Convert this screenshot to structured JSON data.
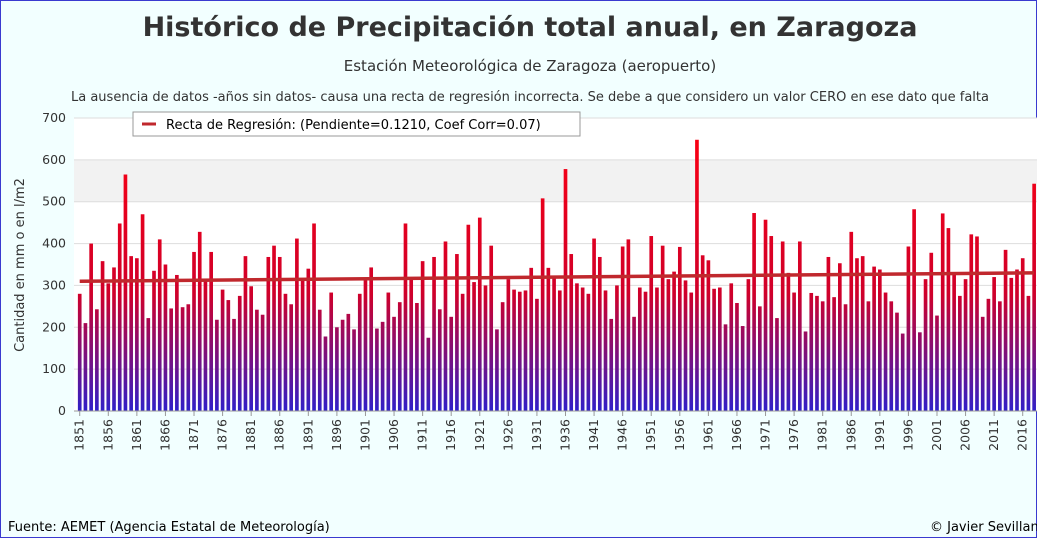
{
  "chart_data": {
    "type": "bar",
    "title": "Histórico de Precipitación total anual, en Zaragoza",
    "subtitle": "Estación Meteorológica de Zaragoza (aeropuerto)",
    "note": "La ausencia de datos -años sin datos- causa una recta de regresión incorrecta. Se debe a que considero un valor CERO en ese dato que falta",
    "y_label": "Cantidad en mm o en l/m2",
    "source": "Fuente: AEMET (Agencia Estatal de Meteorología)",
    "credit": "© Javier Sevillano",
    "x": [
      1851,
      1852,
      1853,
      1854,
      1855,
      1856,
      1857,
      1858,
      1859,
      1860,
      1861,
      1862,
      1863,
      1864,
      1865,
      1866,
      1867,
      1868,
      1869,
      1870,
      1871,
      1872,
      1873,
      1874,
      1875,
      1876,
      1877,
      1878,
      1879,
      1880,
      1881,
      1882,
      1883,
      1884,
      1885,
      1886,
      1887,
      1888,
      1889,
      1890,
      1891,
      1892,
      1893,
      1894,
      1895,
      1896,
      1897,
      1898,
      1899,
      1900,
      1901,
      1902,
      1903,
      1904,
      1905,
      1906,
      1907,
      1908,
      1909,
      1910,
      1911,
      1912,
      1913,
      1914,
      1915,
      1916,
      1917,
      1918,
      1919,
      1920,
      1921,
      1922,
      1923,
      1924,
      1925,
      1926,
      1927,
      1928,
      1929,
      1930,
      1931,
      1932,
      1933,
      1934,
      1935,
      1936,
      1937,
      1938,
      1939,
      1940,
      1941,
      1942,
      1943,
      1944,
      1945,
      1946,
      1947,
      1948,
      1949,
      1950,
      1951,
      1952,
      1953,
      1954,
      1955,
      1956,
      1957,
      1958,
      1959,
      1960,
      1961,
      1962,
      1963,
      1964,
      1965,
      1966,
      1967,
      1968,
      1969,
      1970,
      1971,
      1972,
      1973,
      1974,
      1975,
      1976,
      1977,
      1978,
      1979,
      1980,
      1981,
      1982,
      1983,
      1984,
      1985,
      1986,
      1987,
      1988,
      1989,
      1990,
      1991,
      1992,
      1993,
      1994,
      1995,
      1996,
      1997,
      1998,
      1999,
      2000,
      2001,
      2002,
      2003,
      2004,
      2005,
      2006,
      2007,
      2008,
      2009,
      2010,
      2011,
      2012,
      2013,
      2014,
      2015,
      2016,
      2017,
      2018
    ],
    "series": [
      {
        "name": "Precipitación",
        "color": "#e8001c",
        "values": [
          280,
          210,
          400,
          243,
          358,
          305,
          343,
          448,
          565,
          370,
          365,
          470,
          222,
          335,
          410,
          350,
          245,
          325,
          248,
          255,
          380,
          428,
          315,
          380,
          218,
          290,
          265,
          220,
          275,
          370,
          298,
          242,
          230,
          368,
          395,
          368,
          280,
          255,
          412,
          315,
          340,
          448,
          242,
          178,
          283,
          200,
          218,
          232,
          195,
          280,
          318,
          343,
          197,
          213,
          283,
          225,
          260,
          448,
          320,
          258,
          358,
          175,
          368,
          243,
          405,
          225,
          375,
          280,
          445,
          308,
          462,
          300,
          395,
          195,
          260,
          315,
          290,
          285,
          288,
          342,
          268,
          508,
          342,
          318,
          288,
          578,
          375,
          305,
          295,
          280,
          412,
          368,
          288,
          220,
          300,
          393,
          410,
          225,
          295,
          285,
          418,
          295,
          395,
          315,
          333,
          392,
          312,
          283,
          648,
          372,
          360,
          292,
          295,
          207,
          305,
          258,
          203,
          315,
          473,
          250,
          457,
          418,
          222,
          405,
          330,
          283,
          405,
          190,
          282,
          275,
          262,
          368,
          272,
          353,
          255,
          428,
          365,
          370,
          262,
          345,
          338,
          283,
          262,
          235,
          185,
          393,
          482,
          188,
          315,
          378,
          228,
          472,
          437,
          330,
          275,
          315,
          422,
          417,
          225,
          268,
          320,
          262,
          385,
          318,
          338,
          365,
          275,
          543
        ]
      },
      {
        "name": "Recta de Regresión: (Pendiente=0.1210, Coef Corr=0.07)",
        "type": "line",
        "color": "#c0282d",
        "x": [
          1851,
          2018
        ],
        "values": [
          310,
          330
        ]
      }
    ],
    "xlim": [
      1850,
      2018.5
    ],
    "xticks": [
      1851,
      1856,
      1861,
      1866,
      1871,
      1876,
      1881,
      1886,
      1891,
      1896,
      1901,
      1906,
      1911,
      1916,
      1921,
      1926,
      1931,
      1936,
      1941,
      1946,
      1951,
      1956,
      1961,
      1966,
      1971,
      1976,
      1981,
      1986,
      1991,
      1996,
      2001,
      2006,
      2011,
      2016
    ],
    "ylim": [
      0,
      700
    ],
    "yticks": [
      0,
      100,
      200,
      300,
      400,
      500,
      600,
      700
    ],
    "grid": true
  }
}
